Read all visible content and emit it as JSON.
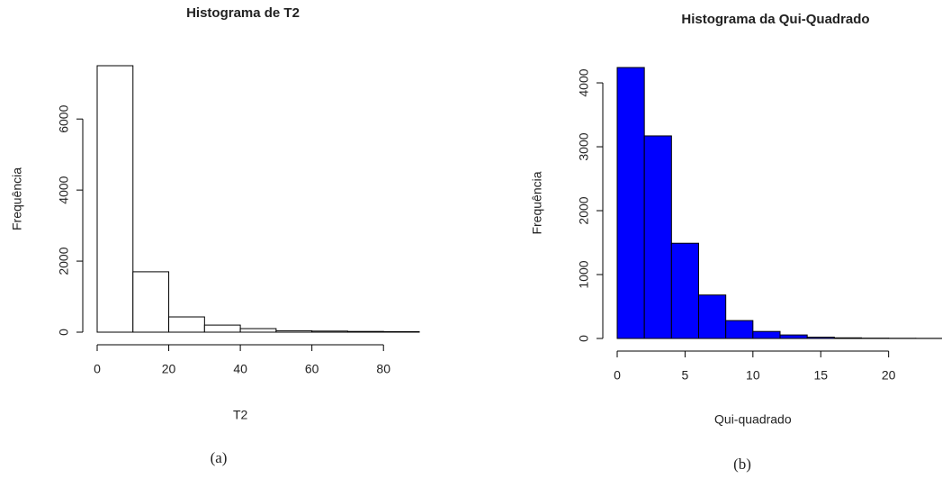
{
  "chart_data": [
    {
      "type": "histogram",
      "title": "Histograma de T2",
      "xlabel": "T2",
      "ylabel": "Frequência",
      "caption": "(a)",
      "bins": [
        0,
        10,
        20,
        30,
        40,
        50,
        60,
        70,
        80,
        90
      ],
      "counts": [
        7500,
        1700,
        430,
        200,
        100,
        40,
        30,
        20,
        15
      ],
      "color": "#ffffff",
      "xlim": [
        0,
        90
      ],
      "xticks": [
        0,
        20,
        40,
        60,
        80
      ],
      "ylim": [
        0,
        7500
      ],
      "yticks": [
        0,
        2000,
        4000,
        6000
      ]
    },
    {
      "type": "histogram",
      "title": "Histograma da Qui-Quadrado",
      "xlabel": "Qui-quadrado",
      "ylabel": "Frequência",
      "caption": "(b)",
      "bins": [
        0,
        2,
        4,
        6,
        8,
        10,
        12,
        14,
        16,
        18,
        20,
        22,
        24
      ],
      "counts": [
        4240,
        3170,
        1490,
        680,
        280,
        110,
        55,
        20,
        10,
        5,
        3,
        2
      ],
      "color": "#0000ff",
      "xlim": [
        0,
        24
      ],
      "xticks": [
        0,
        5,
        10,
        15,
        20
      ],
      "ylim": [
        0,
        4240
      ],
      "yticks": [
        0,
        1000,
        2000,
        3000,
        4000
      ]
    }
  ]
}
